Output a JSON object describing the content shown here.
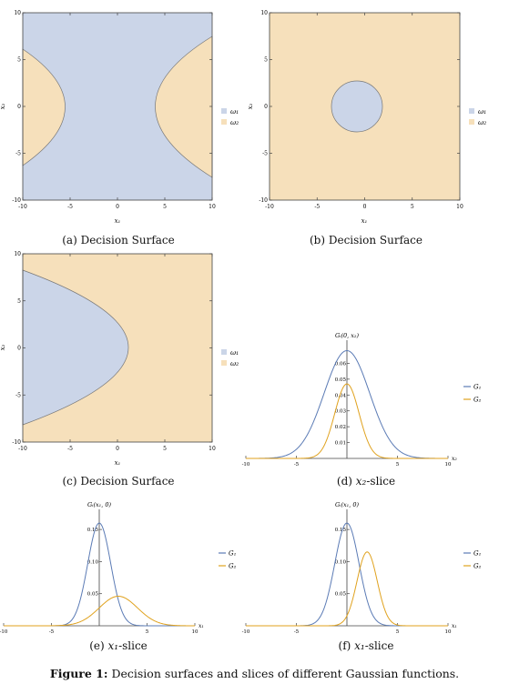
{
  "figure": {
    "label": "Figure 1:",
    "text": "Decision surfaces and slices of different Gaussian functions."
  },
  "colors": {
    "w1": "#cbd5e8",
    "w2": "#f6e0bb",
    "g1": "#5b7bb5",
    "g2": "#e0a21e",
    "boundary": "#777777"
  },
  "chart_data": [
    {
      "id": "a",
      "type": "heatmap",
      "caption": "(a) Decision Surface",
      "xlabel": "x₁",
      "ylabel": "x₂",
      "xlim": [
        -10,
        10
      ],
      "ylim": [
        -10,
        10
      ],
      "xticks": [
        -10,
        -5,
        0,
        5,
        10
      ],
      "yticks": [
        -10,
        -5,
        0,
        5,
        10
      ],
      "region_shape": "two facing hyperbolas, vertices near x1 = ±2.7",
      "legend": [
        {
          "key": "w1",
          "label": "ω₁"
        },
        {
          "key": "w2",
          "label": "ω₂"
        }
      ]
    },
    {
      "id": "b",
      "type": "heatmap",
      "caption": "(b) Decision Surface",
      "xlabel": "x₁",
      "ylabel": "x₂",
      "xlim": [
        -10,
        10
      ],
      "ylim": [
        -10,
        10
      ],
      "xticks": [
        -10,
        -5,
        0,
        5,
        10
      ],
      "yticks": [
        -10,
        -5,
        0,
        5,
        10
      ],
      "region_shape": "circle centered near (-1.7, 0), radius about 3.5",
      "legend": [
        {
          "key": "w1",
          "label": "ω₁"
        },
        {
          "key": "w2",
          "label": "ω₂"
        }
      ]
    },
    {
      "id": "c",
      "type": "heatmap",
      "caption": "(c) Decision Surface",
      "xlabel": "x₁",
      "ylabel": "x₂",
      "xlim": [
        -10,
        10
      ],
      "ylim": [
        -10,
        10
      ],
      "xticks": [
        -10,
        -5,
        0,
        5,
        10
      ],
      "yticks": [
        -10,
        -5,
        0,
        5,
        10
      ],
      "region_shape": "parabola opening left, vertex near (1.3, 0)",
      "legend": [
        {
          "key": "w1",
          "label": "ω₁"
        },
        {
          "key": "w2",
          "label": "ω₂"
        }
      ]
    },
    {
      "id": "d",
      "type": "line",
      "caption_prefix": "(d) ",
      "caption_var": "x₂",
      "caption_suffix": "-slice",
      "title": "Gᵢ(0, x₂)",
      "xlabel": "x₂",
      "xlim": [
        -10,
        10
      ],
      "ylim": [
        0,
        0.07
      ],
      "xticks": [
        -10,
        -5,
        5,
        10
      ],
      "yticks": [
        0.01,
        0.02,
        0.03,
        0.04,
        0.05,
        0.06
      ],
      "ytick_labels": [
        "0.01",
        "0.02",
        "0.03",
        "0.04",
        "0.05",
        "0.06"
      ],
      "series": [
        {
          "name": "G₁",
          "color_key": "g1",
          "mean": 0,
          "sd": 2.25,
          "peak": 0.068
        },
        {
          "name": "G₂",
          "color_key": "g2",
          "mean": 0,
          "sd": 1.2,
          "peak": 0.047
        }
      ]
    },
    {
      "id": "e",
      "type": "line",
      "caption_prefix": "(e) ",
      "caption_var": "x₁",
      "caption_suffix": "-slice",
      "title": "Gᵢ(x₁, 0)",
      "xlabel": "x₁",
      "xlim": [
        -10,
        10
      ],
      "ylim": [
        0,
        0.17
      ],
      "xticks": [
        -10,
        -5,
        5,
        10
      ],
      "yticks": [
        0.05,
        0.1,
        0.15
      ],
      "ytick_labels": [
        "0.05",
        "0.10",
        "0.15"
      ],
      "series": [
        {
          "name": "G₁",
          "color_key": "g1",
          "mean": 0,
          "sd": 1.2,
          "peak": 0.16
        },
        {
          "name": "G₂",
          "color_key": "g2",
          "mean": 2,
          "sd": 2.0,
          "peak": 0.046
        }
      ]
    },
    {
      "id": "f",
      "type": "line",
      "caption_prefix": "(f) ",
      "caption_var": "x₁",
      "caption_suffix": "-slice",
      "title": "Gᵢ(x₁, 0)",
      "xlabel": "x₁",
      "xlim": [
        -10,
        10
      ],
      "ylim": [
        0,
        0.17
      ],
      "xticks": [
        -10,
        -5,
        5,
        10
      ],
      "yticks": [
        0.05,
        0.1,
        0.15
      ],
      "ytick_labels": [
        "0.05",
        "0.10",
        "0.15"
      ],
      "series": [
        {
          "name": "G₁",
          "color_key": "g1",
          "mean": 0,
          "sd": 1.2,
          "peak": 0.16
        },
        {
          "name": "G₂",
          "color_key": "g2",
          "mean": 2,
          "sd": 1.0,
          "peak": 0.115
        }
      ]
    }
  ]
}
